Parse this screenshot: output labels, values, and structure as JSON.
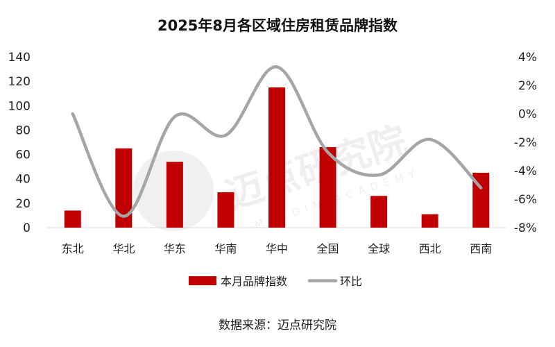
{
  "chart_data": {
    "type": "bar",
    "title": "2025年8月各区域住房租赁品牌指数",
    "categories": [
      "东北",
      "华北",
      "华东",
      "华南",
      "华中",
      "全国",
      "全球",
      "西北",
      "西南"
    ],
    "series": [
      {
        "name": "本月品牌指数",
        "type": "bar",
        "axis": "left",
        "color": "#c00000",
        "values": [
          14,
          65,
          54,
          29,
          115,
          66,
          26,
          11,
          45
        ]
      },
      {
        "name": "环比",
        "type": "line",
        "axis": "right",
        "color": "#a6a6a6",
        "values": [
          0.0,
          -7.2,
          -0.2,
          -1.5,
          3.3,
          -2.7,
          -4.3,
          -1.8,
          -5.2
        ]
      }
    ],
    "y_left": {
      "min": 0,
      "max": 140,
      "step": 20,
      "ticks": [
        "0",
        "20",
        "40",
        "60",
        "80",
        "100",
        "120",
        "140"
      ]
    },
    "y_right": {
      "min": -8,
      "max": 4,
      "step": 2,
      "ticks": [
        "-8%",
        "-6%",
        "-4%",
        "-2%",
        "0%",
        "2%",
        "4%"
      ]
    },
    "legend_position": "bottom",
    "grid": false
  },
  "source_text": "数据来源：迈点研究院",
  "watermark": {
    "cn": "迈点研究院",
    "en": "MEADIN ACADEMY"
  }
}
